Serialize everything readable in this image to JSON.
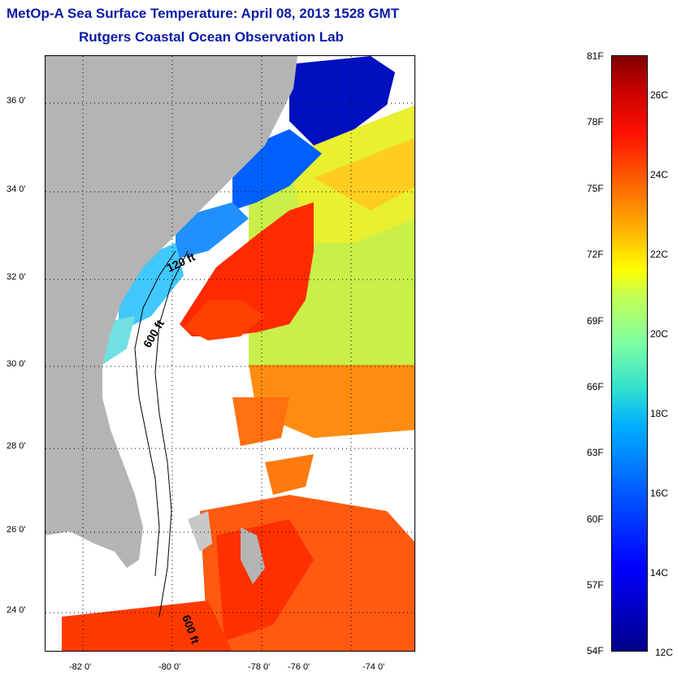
{
  "title": {
    "line1": "MetOp-A Sea Surface Temperature:  April 08, 2013 1528 GMT",
    "line2": "Rutgers Coastal Ocean Observation Lab"
  },
  "map": {
    "lat_labels": [
      "36 0'",
      "34 0'",
      "32 0'",
      "30 0'",
      "28 0'",
      "26 0'",
      "24 0'"
    ],
    "lon_labels": [
      "-82 0'",
      "-80 0'",
      "-78 0'",
      "-76 0'",
      "-74 0'"
    ],
    "isobath_labels": [
      "120 ft",
      "600 ft",
      "600 ft"
    ],
    "colors": {
      "land": "#b4b4b4",
      "cloud": "#ffffff",
      "gulf_stream": "#ff2000",
      "shelf_cold": "#0040ff",
      "offshore_green": "#b8ff40"
    }
  },
  "colorbar": {
    "fahrenheit_labels": [
      "81F",
      "78F",
      "75F",
      "72F",
      "69F",
      "66F",
      "63F",
      "60F",
      "57F",
      "54F"
    ],
    "celsius_labels": [
      "26C",
      "24C",
      "22C",
      "20C",
      "18C",
      "16C",
      "14C",
      "12C"
    ]
  }
}
